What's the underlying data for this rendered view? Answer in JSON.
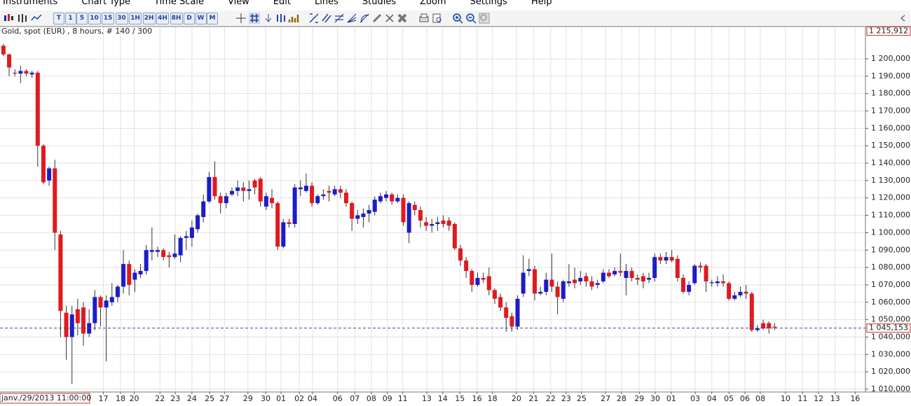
{
  "menu": [
    "Instruments",
    "Chart Type",
    "Time Scale",
    "View",
    "Edit",
    "Lines",
    "Studies",
    "Zoom",
    "Settings",
    "Help"
  ],
  "toolbar": {
    "timeframes": [
      "T",
      "1",
      "5",
      "10",
      "15",
      "30",
      "1H",
      "2H",
      "4H",
      "8H",
      "D",
      "W",
      "M"
    ]
  },
  "chart_data": {
    "type": "candlestick",
    "title": "Gold, spot (EUR) , 8 hours, # 140 / 300",
    "up_color": "#1c1cc8",
    "down_color": "#e01a1f",
    "wick_color": "#333333",
    "grid": true,
    "cursor_label": "janv./29/2013 11:00:00",
    "top_label": {
      "value": 1215912,
      "label": "1 215,912"
    },
    "last_price": {
      "value": 1045153,
      "label": "1 045,153"
    },
    "xlim": [
      -0.6,
      150.9
    ],
    "ylim": [
      1008400,
      1217700
    ],
    "xticks": [
      {
        "value": 17.5,
        "label": "17"
      },
      {
        "value": 20.5,
        "label": "18"
      },
      {
        "value": 22.9,
        "label": "20"
      },
      {
        "value": 27.4,
        "label": "22"
      },
      {
        "value": 30.1,
        "label": "23"
      },
      {
        "value": 33.0,
        "label": "24"
      },
      {
        "value": 36.1,
        "label": "25"
      },
      {
        "value": 38.7,
        "label": "27"
      },
      {
        "value": 42.8,
        "label": "29"
      },
      {
        "value": 45.9,
        "label": "30"
      },
      {
        "value": 48.6,
        "label": "01"
      },
      {
        "value": 51.8,
        "label": "02"
      },
      {
        "value": 54.1,
        "label": "04"
      },
      {
        "value": 58.5,
        "label": "06"
      },
      {
        "value": 61.5,
        "label": "07"
      },
      {
        "value": 64.4,
        "label": "08"
      },
      {
        "value": 67.2,
        "label": "09"
      },
      {
        "value": 69.9,
        "label": "11"
      },
      {
        "value": 74.1,
        "label": "13"
      },
      {
        "value": 76.9,
        "label": "14"
      },
      {
        "value": 79.9,
        "label": "15"
      },
      {
        "value": 82.9,
        "label": "16"
      },
      {
        "value": 85.6,
        "label": "18"
      },
      {
        "value": 89.8,
        "label": "20"
      },
      {
        "value": 92.8,
        "label": "21"
      },
      {
        "value": 95.8,
        "label": "22"
      },
      {
        "value": 98.5,
        "label": "23"
      },
      {
        "value": 101.2,
        "label": "25"
      },
      {
        "value": 105.4,
        "label": "27"
      },
      {
        "value": 108.2,
        "label": "28"
      },
      {
        "value": 111.3,
        "label": "29"
      },
      {
        "value": 114.1,
        "label": "30"
      },
      {
        "value": 116.9,
        "label": "01"
      },
      {
        "value": 121.1,
        "label": "03"
      },
      {
        "value": 124.0,
        "label": "04"
      },
      {
        "value": 127.0,
        "label": "05"
      },
      {
        "value": 129.8,
        "label": "06"
      },
      {
        "value": 132.5,
        "label": "08"
      },
      {
        "value": 136.9,
        "label": "10"
      },
      {
        "value": 139.9,
        "label": "11"
      },
      {
        "value": 142.7,
        "label": "12"
      },
      {
        "value": 145.6,
        "label": "13"
      },
      {
        "value": 149.1,
        "label": "16"
      }
    ],
    "yticks": [
      {
        "value": 1010000,
        "label": "1 010,000"
      },
      {
        "value": 1020000,
        "label": "1 020,000"
      },
      {
        "value": 1030000,
        "label": "1 030,000"
      },
      {
        "value": 1040000,
        "label": "1 040,000"
      },
      {
        "value": 1050000,
        "label": "1 050,000"
      },
      {
        "value": 1060000,
        "label": "1 060,000"
      },
      {
        "value": 1070000,
        "label": "1 070,000"
      },
      {
        "value": 1080000,
        "label": "1 080,000"
      },
      {
        "value": 1090000,
        "label": "1 090,000"
      },
      {
        "value": 1100000,
        "label": "1 100,000"
      },
      {
        "value": 1110000,
        "label": "1 110,000"
      },
      {
        "value": 1120000,
        "label": "1 120,000"
      },
      {
        "value": 1130000,
        "label": "1 130,000"
      },
      {
        "value": 1140000,
        "label": "1 140,000"
      },
      {
        "value": 1150000,
        "label": "1 150,000"
      },
      {
        "value": 1160000,
        "label": "1 160,000"
      },
      {
        "value": 1170000,
        "label": "1 170,000"
      },
      {
        "value": 1180000,
        "label": "1 180,000"
      },
      {
        "value": 1190000,
        "label": "1 190,000"
      },
      {
        "value": 1200000,
        "label": "1 200,000"
      }
    ],
    "open": [
      1207500,
      1202500,
      1192000,
      1191500,
      1193000,
      1191000,
      1192000,
      1150000,
      1130000,
      1137000,
      1099000,
      1054000,
      1040000,
      1056000,
      1057000,
      1042000,
      1048000,
      1063000,
      1057000,
      1060000,
      1063000,
      1069000,
      1082000,
      1073000,
      1076000,
      1078000,
      1089000,
      1089000,
      1090000,
      1087000,
      1086000,
      1087000,
      1097000,
      1097000,
      1102000,
      1109000,
      1118000,
      1132000,
      1121000,
      1117000,
      1122000,
      1124000,
      1126000,
      1124000,
      1130000,
      1131000,
      1115000,
      1120000,
      1117000,
      1092000,
      1106000,
      1105000,
      1125000,
      1124000,
      1127000,
      1117000,
      1121000,
      1124000,
      1122000,
      1125000,
      1123000,
      1117000,
      1108000,
      1109000,
      1111000,
      1112000,
      1118000,
      1120000,
      1122000,
      1118000,
      1120000,
      1100000,
      1116000,
      1113000,
      1106000,
      1104000,
      1105000,
      1107000,
      1107000,
      1105000,
      1091000,
      1084000,
      1078000,
      1070000,
      1074000,
      1075000,
      1067000,
      1063000,
      1057000,
      1052000,
      1046000,
      1065000,
      1078000,
      1079000,
      1065000,
      1066000,
      1073000,
      1069000,
      1062000,
      1071000,
      1073000,
      1072000,
      1075000,
      1072000,
      1070000,
      1072000,
      1077000,
      1076000,
      1078000,
      1074000,
      1078000,
      1074000,
      1075000,
      1073000,
      1074000,
      1086000,
      1084000,
      1086000,
      1085000,
      1074000,
      1066000,
      1071000,
      1081000,
      1081000,
      1071000,
      1071000,
      1072000,
      1071000,
      1062000,
      1064000,
      1066000,
      1065000,
      1044000,
      1048000,
      1048000,
      1046000
    ],
    "high": [
      1208500,
      1203000,
      1194000,
      1196000,
      1194000,
      1193000,
      1193000,
      1151000,
      1138000,
      1142000,
      1101000,
      1058000,
      1058000,
      1062000,
      1060000,
      1056000,
      1067000,
      1064000,
      1064000,
      1071000,
      1070000,
      1090000,
      1084000,
      1079000,
      1082000,
      1093000,
      1103000,
      1092000,
      1091000,
      1089000,
      1099000,
      1098000,
      1101000,
      1107000,
      1111000,
      1122000,
      1135000,
      1141000,
      1123000,
      1123000,
      1126000,
      1130000,
      1129000,
      1130000,
      1131000,
      1132000,
      1123000,
      1125000,
      1118000,
      1108000,
      1108000,
      1128000,
      1130000,
      1134000,
      1129000,
      1122000,
      1125000,
      1127000,
      1127000,
      1127000,
      1125000,
      1118000,
      1113000,
      1114000,
      1116000,
      1121000,
      1123000,
      1124000,
      1123000,
      1122000,
      1122000,
      1118000,
      1118000,
      1115000,
      1109000,
      1108000,
      1109000,
      1110000,
      1109000,
      1106000,
      1093000,
      1086000,
      1079000,
      1077000,
      1077000,
      1080000,
      1068000,
      1065000,
      1060000,
      1054000,
      1064000,
      1087000,
      1085000,
      1081000,
      1069000,
      1077000,
      1088000,
      1072000,
      1073000,
      1082000,
      1080000,
      1078000,
      1077000,
      1075000,
      1073000,
      1079000,
      1079000,
      1080000,
      1088000,
      1082000,
      1080000,
      1076000,
      1077000,
      1077000,
      1088000,
      1088000,
      1089000,
      1090000,
      1087000,
      1076000,
      1072000,
      1082000,
      1083000,
      1082000,
      1073000,
      1075000,
      1076000,
      1072000,
      1066000,
      1069000,
      1070000,
      1066000,
      1047000,
      1050000,
      1049000,
      1048000
    ],
    "low": [
      1201500,
      1190000,
      1190000,
      1186000,
      1190000,
      1189000,
      1138000,
      1128000,
      1127000,
      1090000,
      1040000,
      1027000,
      1013000,
      1041000,
      1035000,
      1040000,
      1044000,
      1046000,
      1026000,
      1058000,
      1060000,
      1065000,
      1064000,
      1066000,
      1074000,
      1076000,
      1084000,
      1086000,
      1084000,
      1080000,
      1085000,
      1083000,
      1090000,
      1092000,
      1100000,
      1106000,
      1117000,
      1119000,
      1111000,
      1114000,
      1121000,
      1121000,
      1118000,
      1119000,
      1122000,
      1115000,
      1113000,
      1114000,
      1090000,
      1091000,
      1103000,
      1103000,
      1121000,
      1123000,
      1115000,
      1116000,
      1119000,
      1118000,
      1121000,
      1120000,
      1115000,
      1101000,
      1105000,
      1103000,
      1106000,
      1110000,
      1117000,
      1118000,
      1116000,
      1117000,
      1104000,
      1094000,
      1110000,
      1103000,
      1101000,
      1100000,
      1101000,
      1103000,
      1101000,
      1090000,
      1081000,
      1074000,
      1066000,
      1069000,
      1071000,
      1064000,
      1059000,
      1055000,
      1043000,
      1043000,
      1044000,
      1063000,
      1075000,
      1061000,
      1064000,
      1064000,
      1066000,
      1053000,
      1060000,
      1069000,
      1068000,
      1070000,
      1069000,
      1067000,
      1068000,
      1071000,
      1074000,
      1075000,
      1075000,
      1064000,
      1072000,
      1070000,
      1068000,
      1071000,
      1072000,
      1082000,
      1082000,
      1083000,
      1072000,
      1065000,
      1064000,
      1070000,
      1077000,
      1066000,
      1069000,
      1069000,
      1069000,
      1061000,
      1061000,
      1063000,
      1062000,
      1043000,
      1043000,
      1044000,
      1042000,
      1044000
    ],
    "close": [
      1202500,
      1195000,
      1191500,
      1193000,
      1191500,
      1192000,
      1150000,
      1129000,
      1137000,
      1100000,
      1055000,
      1040000,
      1053000,
      1048000,
      1042000,
      1048000,
      1063000,
      1057000,
      1061000,
      1063000,
      1069000,
      1082000,
      1070000,
      1077000,
      1078000,
      1090000,
      1090000,
      1090000,
      1086000,
      1086000,
      1088000,
      1097000,
      1098000,
      1103000,
      1110000,
      1118000,
      1132000,
      1121000,
      1117000,
      1121000,
      1124000,
      1126000,
      1124000,
      1125000,
      1126000,
      1118000,
      1121000,
      1117000,
      1092000,
      1106000,
      1105000,
      1126000,
      1126000,
      1127000,
      1117000,
      1121000,
      1122000,
      1123000,
      1125000,
      1123000,
      1117000,
      1108000,
      1110000,
      1111000,
      1113000,
      1119000,
      1121000,
      1122000,
      1118000,
      1120000,
      1106000,
      1117000,
      1113000,
      1107000,
      1104000,
      1105000,
      1106000,
      1105000,
      1104000,
      1091000,
      1084000,
      1078000,
      1070000,
      1074000,
      1073000,
      1067000,
      1062000,
      1057000,
      1051000,
      1046000,
      1062000,
      1077000,
      1079000,
      1065000,
      1066000,
      1073000,
      1069000,
      1063000,
      1072000,
      1072000,
      1071000,
      1074000,
      1072000,
      1069000,
      1071000,
      1077000,
      1075000,
      1078000,
      1077000,
      1078000,
      1074000,
      1073000,
      1072000,
      1074000,
      1086000,
      1084000,
      1086000,
      1084000,
      1074000,
      1066000,
      1070000,
      1081000,
      1080000,
      1072000,
      1071500,
      1072000,
      1071000,
      1062000,
      1064000,
      1066000,
      1065000,
      1044000,
      1045000,
      1045000,
      1045000,
      1045500
    ]
  }
}
